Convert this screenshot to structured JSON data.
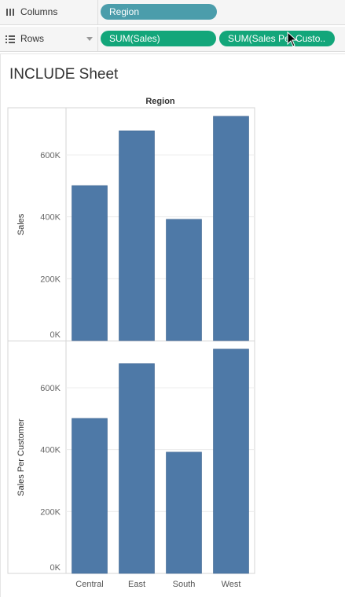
{
  "shelves": {
    "columns": {
      "label": "Columns",
      "pills": [
        "Region"
      ]
    },
    "rows": {
      "label": "Rows",
      "pills": [
        "SUM(Sales)",
        "SUM(Sales Per Custo.."
      ]
    }
  },
  "sheet": {
    "title": "INCLUDE Sheet"
  },
  "colors": {
    "bar": "#4e79a7",
    "dimension_pill": "#4b9dab",
    "measure_pill": "#13a67a"
  },
  "chart_data": [
    {
      "type": "bar",
      "column_header": "Region",
      "categories": [
        "Central",
        "East",
        "South",
        "West"
      ],
      "values": [
        501000,
        678000,
        392000,
        725000
      ],
      "ylabel": "Sales",
      "ylim": [
        0,
        750000
      ],
      "yticks": [
        0,
        200000,
        400000,
        600000
      ],
      "ytick_labels": [
        "0K",
        "200K",
        "400K",
        "600K"
      ],
      "grid": true
    },
    {
      "type": "bar",
      "categories": [
        "Central",
        "East",
        "South",
        "West"
      ],
      "values": [
        501000,
        678000,
        392000,
        725000
      ],
      "ylabel": "Sales Per Customer",
      "ylim": [
        0,
        750000
      ],
      "yticks": [
        0,
        200000,
        400000,
        600000
      ],
      "ytick_labels": [
        "0K",
        "200K",
        "400K",
        "600K"
      ],
      "grid": true
    }
  ]
}
